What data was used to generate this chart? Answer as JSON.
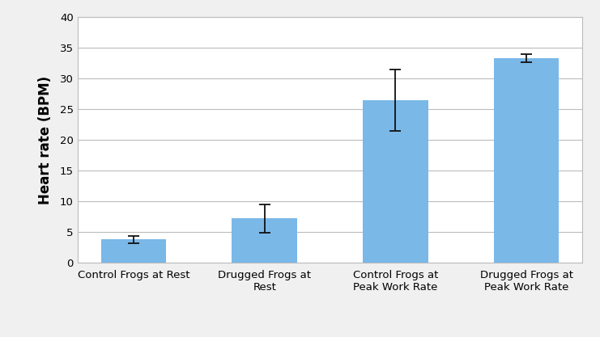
{
  "categories": [
    "Control Frogs at Rest",
    "Drugged Frogs at\nRest",
    "Control Frogs at\nPeak Work Rate",
    "Drugged Frogs at\nPeak Work Rate"
  ],
  "values": [
    3.8,
    7.2,
    26.5,
    33.3
  ],
  "errors": [
    0.55,
    2.3,
    5.0,
    0.65
  ],
  "bar_color": "#7ab8e8",
  "ylabel": "Heart rate (BPM)",
  "ylim": [
    0,
    40
  ],
  "yticks": [
    0,
    5,
    10,
    15,
    20,
    25,
    30,
    35,
    40
  ],
  "bar_width": 0.5,
  "background_color": "#f0f0f0",
  "plot_bg_color": "#ffffff",
  "grid_color": "#bbbbbb",
  "error_color": "#111111",
  "ylabel_fontsize": 12,
  "tick_fontsize": 9.5,
  "xlabel_fontsize": 9.5
}
